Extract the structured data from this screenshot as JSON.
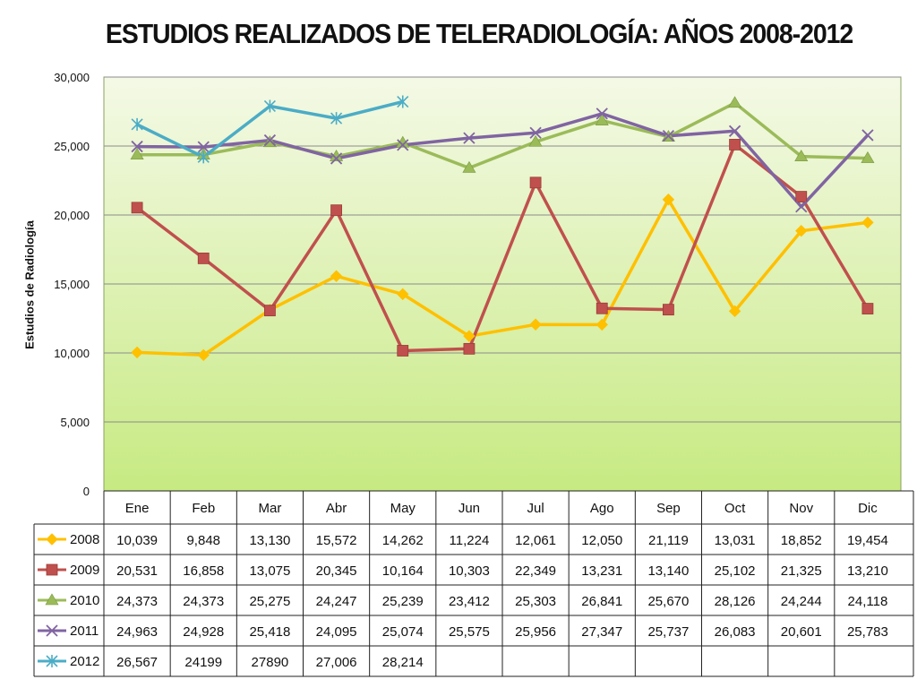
{
  "chart_data": {
    "type": "line",
    "title": "ESTUDIOS REALIZADOS DE TELERADIOLOGÍA: AÑOS 2008-2012",
    "ylabel": "Estudios de Radiología",
    "xlabel": "",
    "ylim": [
      0,
      30000
    ],
    "yticks": [
      "0",
      "5,000",
      "10,000",
      "15,000",
      "20,000",
      "25,000",
      "30,000"
    ],
    "ytick_values": [
      0,
      5000,
      10000,
      15000,
      20000,
      25000,
      30000
    ],
    "grid": true,
    "legend": "data-table-below",
    "categories": [
      "Ene",
      "Feb",
      "Mar",
      "Abr",
      "May",
      "Jun",
      "Jul",
      "Ago",
      "Sep",
      "Oct",
      "Nov",
      "Dic"
    ],
    "series": [
      {
        "name": "2008",
        "color": "#FFC000",
        "marker": "diamond",
        "values": [
          10039,
          9848,
          13130,
          15572,
          14262,
          11224,
          12061,
          12050,
          21119,
          13031,
          18852,
          19454
        ],
        "labels": [
          "10,039",
          "9,848",
          "13,130",
          "15,572",
          "14,262",
          "11,224",
          "12,061",
          "12,050",
          "21,119",
          "13,031",
          "18,852",
          "19,454"
        ]
      },
      {
        "name": "2009",
        "color": "#C0504D",
        "marker": "square",
        "values": [
          20531,
          16858,
          13075,
          20345,
          10164,
          10303,
          22349,
          13231,
          13140,
          25102,
          21325,
          13210
        ],
        "labels": [
          "20,531",
          "16,858",
          "13,075",
          "20,345",
          "10,164",
          "10,303",
          "22,349",
          "13,231",
          "13,140",
          "25,102",
          "21,325",
          "13,210"
        ]
      },
      {
        "name": "2010",
        "color": "#9BBB59",
        "marker": "triangle",
        "values": [
          24373,
          24373,
          25275,
          24247,
          25239,
          23412,
          25303,
          26841,
          25670,
          28126,
          24244,
          24118
        ],
        "labels": [
          "24,373",
          "24,373",
          "25,275",
          "24,247",
          "25,239",
          "23,412",
          "25,303",
          "26,841",
          "25,670",
          "28,126",
          "24,244",
          "24,118"
        ]
      },
      {
        "name": "2011",
        "color": "#8064A2",
        "marker": "x",
        "values": [
          24963,
          24928,
          25418,
          24095,
          25074,
          25575,
          25956,
          27347,
          25737,
          26083,
          20601,
          25783
        ],
        "labels": [
          "24,963",
          "24,928",
          "25,418",
          "24,095",
          "25,074",
          "25,575",
          "25,956",
          "27,347",
          "25,737",
          "26,083",
          "20,601",
          "25,783"
        ]
      },
      {
        "name": "2012",
        "color": "#4BACC6",
        "marker": "star",
        "values": [
          26567,
          24199,
          27890,
          27006,
          28214,
          null,
          null,
          null,
          null,
          null,
          null,
          null
        ],
        "labels": [
          "26,567",
          "24199",
          "27890",
          "27,006",
          "28,214",
          "",
          "",
          "",
          "",
          "",
          "",
          ""
        ]
      }
    ]
  }
}
